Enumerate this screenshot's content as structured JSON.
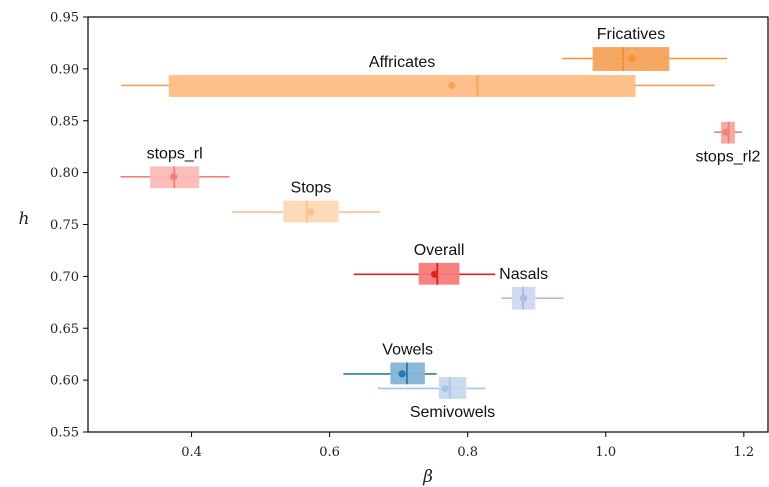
{
  "chart_data": {
    "type": "box",
    "title": "",
    "xlabel": "β",
    "ylabel": "h",
    "xlim": [
      0.25,
      1.235
    ],
    "ylim": [
      0.55,
      0.95
    ],
    "xticks": [
      "0.4",
      "0.6",
      "0.8",
      "1.0",
      "1.2"
    ],
    "xtick_values": [
      0.4,
      0.6,
      0.8,
      1.0,
      1.2
    ],
    "yticks": [
      "0.55",
      "0.60",
      "0.65",
      "0.70",
      "0.75",
      "0.80",
      "0.85",
      "0.90",
      "0.95"
    ],
    "ytick_values": [
      0.55,
      0.6,
      0.65,
      0.7,
      0.75,
      0.8,
      0.85,
      0.9,
      0.95
    ],
    "grid": false,
    "groups": [
      {
        "name": "Fricatives",
        "y": 0.91,
        "h_iqr": [
          0.898,
          0.921
        ],
        "whisker": [
          0.937,
          1.176
        ],
        "box": [
          0.981,
          1.092
        ],
        "median": 1.025,
        "mean": 1.038,
        "color": "#f5a35a",
        "line_color": "#f39130",
        "label_pos": "above"
      },
      {
        "name": "Affricates",
        "y": 0.884,
        "h_iqr": [
          0.873,
          0.894
        ],
        "whisker": [
          0.298,
          1.158
        ],
        "box": [
          0.367,
          1.043
        ],
        "median": 0.814,
        "mean": 0.777,
        "color": "#ffbd86",
        "line_color": "#f5a35a",
        "label_pos": "above"
      },
      {
        "name": "stops_rl2",
        "y": 0.839,
        "h_iqr": [
          0.828,
          0.849
        ],
        "whisker": [
          1.157,
          1.197
        ],
        "box": [
          1.167,
          1.187
        ],
        "median": 1.178,
        "mean": 1.174,
        "color": "#f4a6a0",
        "line_color": "#f08078",
        "label_pos": "below"
      },
      {
        "name": "stops_rl",
        "y": 0.796,
        "h_iqr": [
          0.785,
          0.806
        ],
        "whisker": [
          0.297,
          0.455
        ],
        "box": [
          0.34,
          0.411
        ],
        "median": 0.375,
        "mean": 0.374,
        "color": "#fbbab6",
        "line_color": "#f4807a",
        "label_pos": "above"
      },
      {
        "name": "Stops",
        "y": 0.762,
        "h_iqr": [
          0.752,
          0.773
        ],
        "whisker": [
          0.459,
          0.673
        ],
        "box": [
          0.533,
          0.613
        ],
        "median": 0.567,
        "mean": 0.573,
        "color": "#fdd9b5",
        "line_color": "#fbc08c",
        "label_pos": "above"
      },
      {
        "name": "Overall",
        "y": 0.702,
        "h_iqr": [
          0.692,
          0.713
        ],
        "whisker": [
          0.635,
          0.84
        ],
        "box": [
          0.729,
          0.788
        ],
        "median": 0.756,
        "mean": 0.752,
        "color": "#f77a7a",
        "line_color": "#e02020",
        "label_pos": "above"
      },
      {
        "name": "Nasals",
        "y": 0.679,
        "h_iqr": [
          0.668,
          0.69
        ],
        "whisker": [
          0.849,
          0.939
        ],
        "box": [
          0.864,
          0.898
        ],
        "median": 0.88,
        "mean": 0.881,
        "color": "#cdd9f0",
        "line_color": "#a9bde6",
        "label_pos": "above"
      },
      {
        "name": "Vowels",
        "y": 0.606,
        "h_iqr": [
          0.596,
          0.617
        ],
        "whisker": [
          0.62,
          0.755
        ],
        "box": [
          0.688,
          0.738
        ],
        "median": 0.712,
        "mean": 0.705,
        "color": "#86b4d6",
        "line_color": "#2a78b0",
        "label_pos": "above"
      },
      {
        "name": "Semivowels",
        "y": 0.592,
        "h_iqr": [
          0.582,
          0.603
        ],
        "whisker": [
          0.67,
          0.825
        ],
        "box": [
          0.758,
          0.798
        ],
        "median": 0.774,
        "mean": 0.767,
        "color": "#c8d8ee",
        "line_color": "#a7c4e6",
        "label_pos": "below"
      }
    ]
  }
}
